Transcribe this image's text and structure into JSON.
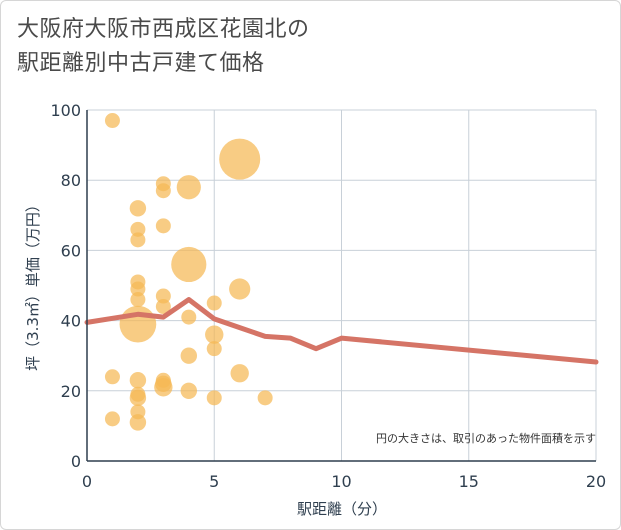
{
  "chart_data": {
    "type": "scatter",
    "title_line1": "大阪府大阪市西成区花園北の",
    "title_line2": "駅距離別中古戸建て価格",
    "xlabel": "駅距離（分）",
    "ylabel": "坪（3.3㎡）単価（万円）",
    "xlim": [
      0,
      20
    ],
    "ylim": [
      0,
      100
    ],
    "xticks": [
      0,
      5,
      10,
      15,
      20
    ],
    "yticks": [
      0,
      20,
      40,
      60,
      80,
      100
    ],
    "grid": true,
    "note": "円の大きさは、取引のあった物件面積を示す",
    "points": [
      {
        "x": 1,
        "y": 97,
        "size": 1
      },
      {
        "x": 1,
        "y": 24,
        "size": 1
      },
      {
        "x": 1,
        "y": 12,
        "size": 1
      },
      {
        "x": 2,
        "y": 72,
        "size": 1.2
      },
      {
        "x": 2,
        "y": 66,
        "size": 1
      },
      {
        "x": 2,
        "y": 63,
        "size": 1
      },
      {
        "x": 2,
        "y": 51,
        "size": 1
      },
      {
        "x": 2,
        "y": 49,
        "size": 1
      },
      {
        "x": 2,
        "y": 46,
        "size": 1
      },
      {
        "x": 2,
        "y": 39,
        "size": 6
      },
      {
        "x": 2,
        "y": 23,
        "size": 1.2
      },
      {
        "x": 2,
        "y": 19,
        "size": 1
      },
      {
        "x": 2,
        "y": 18,
        "size": 1.2
      },
      {
        "x": 2,
        "y": 14,
        "size": 1
      },
      {
        "x": 2,
        "y": 11,
        "size": 1.2
      },
      {
        "x": 3,
        "y": 79,
        "size": 1
      },
      {
        "x": 3,
        "y": 77,
        "size": 1
      },
      {
        "x": 3,
        "y": 67,
        "size": 1
      },
      {
        "x": 3,
        "y": 47,
        "size": 1
      },
      {
        "x": 3,
        "y": 44,
        "size": 1
      },
      {
        "x": 3,
        "y": 23,
        "size": 1
      },
      {
        "x": 3,
        "y": 22,
        "size": 1.2
      },
      {
        "x": 3,
        "y": 21,
        "size": 1.5
      },
      {
        "x": 4,
        "y": 78,
        "size": 2.6
      },
      {
        "x": 4,
        "y": 56,
        "size": 5.5
      },
      {
        "x": 4,
        "y": 41,
        "size": 1
      },
      {
        "x": 4,
        "y": 30,
        "size": 1.2
      },
      {
        "x": 4,
        "y": 20,
        "size": 1.2
      },
      {
        "x": 5,
        "y": 45,
        "size": 1
      },
      {
        "x": 5,
        "y": 36,
        "size": 1.5
      },
      {
        "x": 5,
        "y": 32,
        "size": 1
      },
      {
        "x": 5,
        "y": 18,
        "size": 1
      },
      {
        "x": 6,
        "y": 86,
        "size": 7.5
      },
      {
        "x": 6,
        "y": 49,
        "size": 2
      },
      {
        "x": 6,
        "y": 25,
        "size": 1.5
      },
      {
        "x": 7,
        "y": 18,
        "size": 1
      }
    ],
    "trend": {
      "x": [
        0,
        2,
        3,
        4,
        5,
        6,
        7,
        8,
        9,
        10,
        20
      ],
      "y": [
        39.5,
        41.8,
        41,
        46,
        40.5,
        38,
        35.5,
        35,
        32,
        35,
        28.2
      ]
    },
    "colors": {
      "bubble": "#f5b955",
      "trend": "#d57466",
      "grid": "#c8d0d8",
      "axis": "#2f3f4f"
    }
  }
}
